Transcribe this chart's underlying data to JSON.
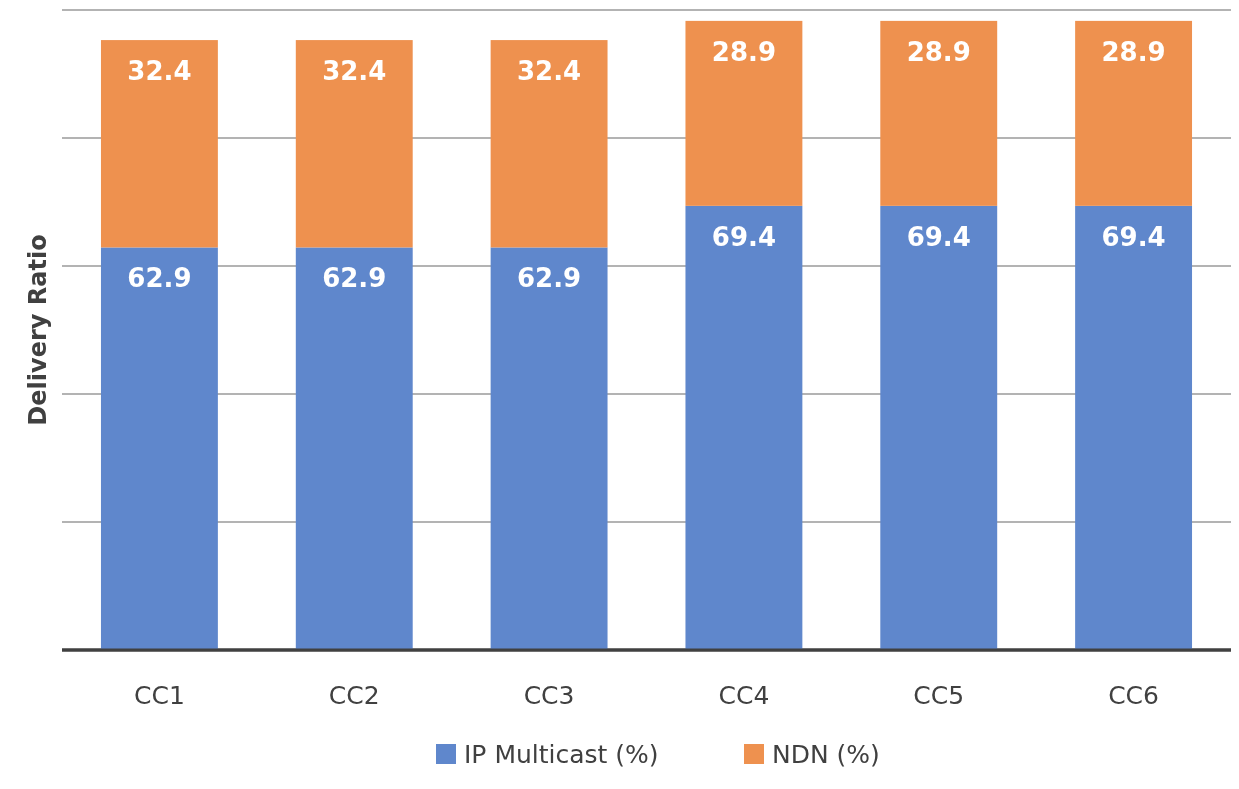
{
  "chart_data": {
    "type": "bar",
    "stacked": true,
    "ylabel": "Delivery Ratio",
    "categories": [
      "CC1",
      "CC2",
      "CC3",
      "CC4",
      "CC5",
      "CC6"
    ],
    "series": [
      {
        "name": "IP Multicast (%)",
        "color": "#5f87cc",
        "values": [
          62.9,
          62.9,
          62.9,
          69.4,
          69.4,
          69.4
        ]
      },
      {
        "name": "NDN (%)",
        "color": "#ee914f",
        "values": [
          32.4,
          32.4,
          32.4,
          28.9,
          28.9,
          28.9
        ]
      }
    ],
    "ylim": [
      0,
      100
    ],
    "yticks": [
      {
        "value": 0,
        "label": null
      },
      {
        "value": 20,
        "label": null
      },
      {
        "value": 40,
        "label": null
      },
      {
        "value": 60,
        "label": null
      },
      {
        "value": 80,
        "label": null
      },
      {
        "value": 100,
        "label": null
      }
    ],
    "grid": "y",
    "data_labels": true,
    "legend": "bottom",
    "tick_labels": "x"
  }
}
